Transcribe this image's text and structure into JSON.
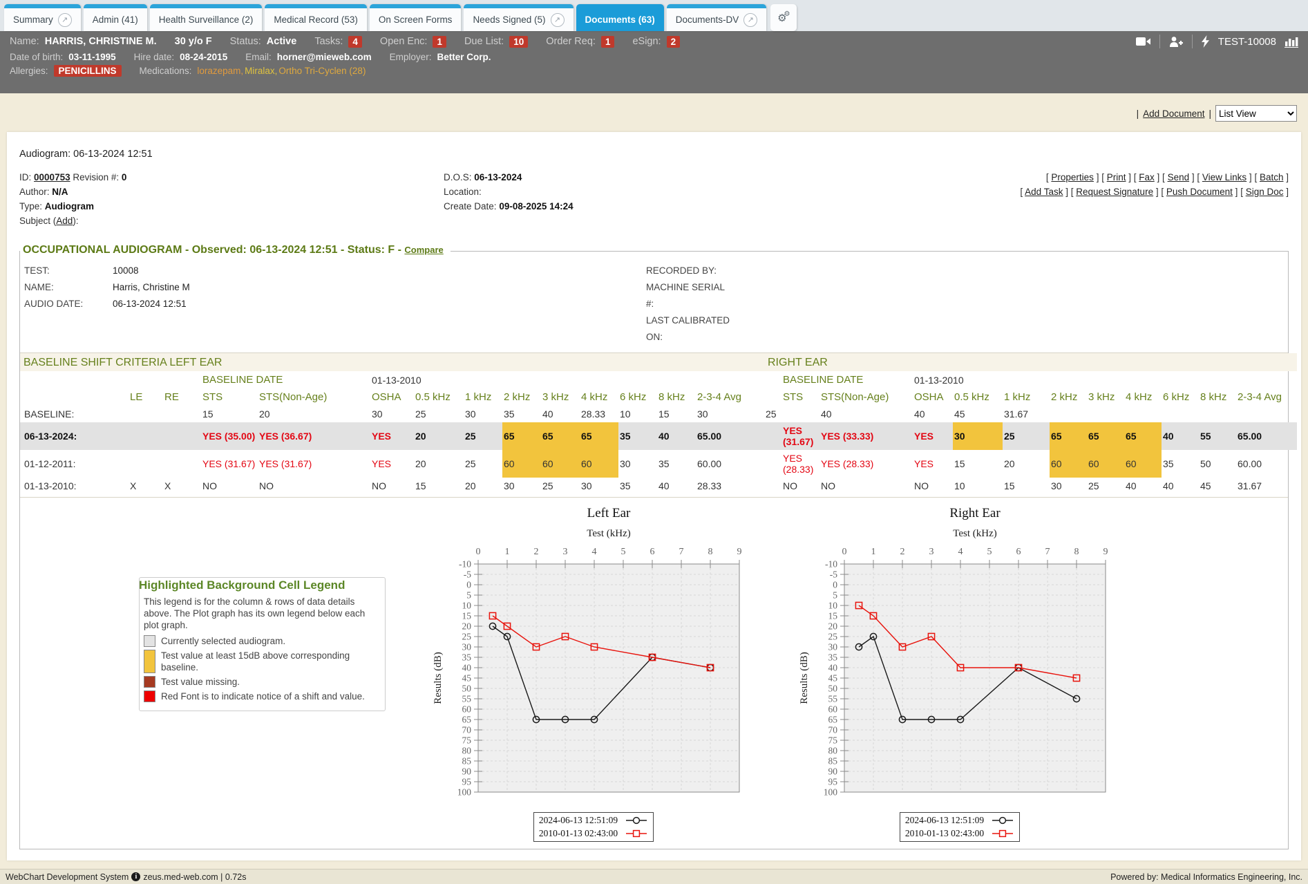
{
  "colors": {
    "tab_active": "#1b9cd8",
    "tab_strip": "#2ba4da",
    "patient_bar": "#6e6e6e",
    "badge_red": "#c0392b",
    "page_beige": "#f2ecda",
    "heading_green": "#66801c",
    "shift_red": "#e30613",
    "highlight_yellow": "#f2c43d",
    "selected_gray": "#e2e2e2",
    "series_black": "#1a1a1a",
    "series_red": "#e8130c",
    "missing_brown": "#a63a21",
    "legend_red": "#ee0000"
  },
  "tabs": [
    {
      "label": "Summary",
      "ext": true,
      "active": false
    },
    {
      "label": "Admin (41)",
      "ext": false,
      "active": false
    },
    {
      "label": "Health Surveillance (2)",
      "ext": false,
      "active": false
    },
    {
      "label": "Medical Record (53)",
      "ext": false,
      "active": false
    },
    {
      "label": "On Screen Forms",
      "ext": false,
      "active": false
    },
    {
      "label": "Needs Signed (5)",
      "ext": true,
      "active": false
    },
    {
      "label": "Documents (63)",
      "ext": false,
      "active": true
    },
    {
      "label": "Documents-DV",
      "ext": true,
      "active": false
    }
  ],
  "patient": {
    "name_label": "Name:",
    "name": "HARRIS, CHRISTINE M.",
    "age_sex": "30 y/o F",
    "status_label": "Status:",
    "status": "Active",
    "counters": [
      {
        "label": "Tasks:",
        "value": "4"
      },
      {
        "label": "Open Enc:",
        "value": "1"
      },
      {
        "label": "Due List:",
        "value": "10"
      },
      {
        "label": "Order Req:",
        "value": "1"
      },
      {
        "label": "eSign:",
        "value": "2"
      }
    ],
    "chart_id": "TEST-10008",
    "dob_label": "Date of birth:",
    "dob": "03-11-1995",
    "hire_label": "Hire date:",
    "hire": "08-24-2015",
    "email_label": "Email:",
    "email": "horner@mieweb.com",
    "employer_label": "Employer:",
    "employer": "Better Corp.",
    "allergies_label": "Allergies:",
    "allergy": "PENICILLINS",
    "medications_label": "Medications:",
    "medications": [
      {
        "name": "lorazepam",
        "color": "#e09a3e"
      },
      {
        "name": "Miralax",
        "color": "#dfc23f"
      },
      {
        "name": "Ortho Tri-Cyclen (28)",
        "color": "#e0a93e"
      }
    ],
    "med_separator": ","
  },
  "toolbar": {
    "pipe": "|",
    "add_document": "Add Document",
    "view_selected": "List View"
  },
  "document": {
    "title": "Audiogram: 06-13-2024 12:51",
    "id_label": "ID:",
    "id": "0000753",
    "revision_label": "Revision #:",
    "revision": "0",
    "author_label": "Author:",
    "author": "N/A",
    "type_label": "Type:",
    "type": "Audiogram",
    "subject_label": "Subject (",
    "subject_add": "Add",
    "subject_close": "):",
    "dos_label": "D.O.S:",
    "dos": "06-13-2024",
    "location_label": "Location:",
    "location": "",
    "create_label": "Create Date:",
    "create": "09-08-2025 14:24",
    "link_open": "[",
    "link_close": "]",
    "links_row1": [
      "Properties",
      "Print",
      "Fax",
      "Send",
      "View Links",
      "Batch"
    ],
    "links_row2": [
      "Add Task",
      "Request Signature",
      "Push Document",
      "Sign Doc"
    ]
  },
  "audiogram": {
    "title": "OCCUPATIONAL AUDIOGRAM - Observed: 06-13-2024 12:51 - Status: F -",
    "compare_link": "Compare",
    "info_left": [
      {
        "label": "TEST:",
        "value": "10008"
      },
      {
        "label": "NAME:",
        "value": "Harris, Christine M"
      },
      {
        "label": "AUDIO DATE:",
        "value": "06-13-2024 12:51"
      }
    ],
    "info_right": [
      {
        "label": "RECORDED BY:",
        "value": ""
      },
      {
        "label": "MACHINE SERIAL #:",
        "value": ""
      },
      {
        "label": "LAST CALIBRATED ON:",
        "value": ""
      }
    ],
    "section_left": "BASELINE SHIFT CRITERIA LEFT EAR",
    "section_right": "RIGHT EAR",
    "baseline_date_label": "BASELINE DATE",
    "baseline_date_left": "01-13-2010",
    "baseline_date_right": "01-13-2010",
    "headers": [
      "LE",
      "RE",
      "STS",
      "STS(Non-Age)",
      "OSHA",
      "0.5 kHz",
      "1 kHz",
      "2 kHz",
      "3 kHz",
      "4 kHz",
      "6 kHz",
      "8 kHz",
      "2-3-4 Avg"
    ],
    "rows": [
      {
        "label": "BASELINE:",
        "le": "",
        "re": "",
        "selected": false,
        "gap": "25",
        "left": [
          {
            "t": "15"
          },
          {
            "t": "20"
          },
          {
            "t": "30"
          },
          {
            "t": "25"
          },
          {
            "t": "30"
          },
          {
            "t": "35"
          },
          {
            "t": "40"
          },
          {
            "t": "28.33"
          },
          {
            "t": "10"
          },
          {
            "t": "15"
          },
          {
            "t": "30"
          }
        ],
        "right": [
          {
            "t": ""
          },
          {
            "t": "40"
          },
          {
            "t": "40"
          },
          {
            "t": "45"
          },
          {
            "t": "31.67"
          },
          {
            "t": ""
          },
          {
            "t": ""
          },
          {
            "t": ""
          },
          {
            "t": ""
          },
          {
            "t": ""
          },
          {
            "t": ""
          }
        ]
      },
      {
        "label": "06-13-2024:",
        "le": "",
        "re": "",
        "selected": true,
        "gap": "",
        "left": [
          {
            "t": "YES (35.00)",
            "red": true
          },
          {
            "t": "YES (36.67)",
            "red": true
          },
          {
            "t": "YES",
            "red": true
          },
          {
            "t": "20"
          },
          {
            "t": "25"
          },
          {
            "t": "65",
            "hl": true
          },
          {
            "t": "65",
            "hl": true
          },
          {
            "t": "65",
            "hl": true
          },
          {
            "t": "35"
          },
          {
            "t": "40"
          },
          {
            "t": "65.00"
          }
        ],
        "right": [
          {
            "t": "YES (31.67)",
            "red": true
          },
          {
            "t": "YES (33.33)",
            "red": true
          },
          {
            "t": "YES",
            "red": true
          },
          {
            "t": "30",
            "hl": true
          },
          {
            "t": "25"
          },
          {
            "t": "65",
            "hl": true
          },
          {
            "t": "65",
            "hl": true
          },
          {
            "t": "65",
            "hl": true
          },
          {
            "t": "40"
          },
          {
            "t": "55"
          },
          {
            "t": "65.00"
          }
        ]
      },
      {
        "label": "01-12-2011:",
        "le": "",
        "re": "",
        "selected": false,
        "gap": "",
        "left": [
          {
            "t": "YES (31.67)",
            "red": true
          },
          {
            "t": "YES (31.67)",
            "red": true
          },
          {
            "t": "YES",
            "red": true
          },
          {
            "t": "20"
          },
          {
            "t": "25"
          },
          {
            "t": "60",
            "hl": true
          },
          {
            "t": "60",
            "hl": true
          },
          {
            "t": "60",
            "hl": true
          },
          {
            "t": "30"
          },
          {
            "t": "35"
          },
          {
            "t": "60.00"
          }
        ],
        "right": [
          {
            "t": "YES (28.33)",
            "red": true
          },
          {
            "t": "YES (28.33)",
            "red": true
          },
          {
            "t": "YES",
            "red": true
          },
          {
            "t": "15"
          },
          {
            "t": "20"
          },
          {
            "t": "60",
            "hl": true
          },
          {
            "t": "60",
            "hl": true
          },
          {
            "t": "60",
            "hl": true
          },
          {
            "t": "35"
          },
          {
            "t": "50"
          },
          {
            "t": "60.00"
          }
        ]
      },
      {
        "label": "01-13-2010:",
        "le": "X",
        "re": "X",
        "selected": false,
        "gap": "",
        "left": [
          {
            "t": "NO"
          },
          {
            "t": "NO"
          },
          {
            "t": "NO"
          },
          {
            "t": "15"
          },
          {
            "t": "20"
          },
          {
            "t": "30"
          },
          {
            "t": "25"
          },
          {
            "t": "30"
          },
          {
            "t": "35"
          },
          {
            "t": "40"
          },
          {
            "t": "28.33"
          }
        ],
        "right": [
          {
            "t": "NO"
          },
          {
            "t": "NO"
          },
          {
            "t": "NO"
          },
          {
            "t": "10"
          },
          {
            "t": "15"
          },
          {
            "t": "30"
          },
          {
            "t": "25"
          },
          {
            "t": "40"
          },
          {
            "t": "40"
          },
          {
            "t": "45"
          },
          {
            "t": "31.67"
          }
        ]
      }
    ]
  },
  "cell_legend": {
    "title": "Highlighted Background Cell Legend",
    "description": "This legend is for the column & rows of data details above. The Plot graph has its own legend below each plot graph.",
    "items": [
      {
        "color": "#e3e3e3",
        "text": "Currently selected audiogram."
      },
      {
        "color": "#f2c43d",
        "text": "Test value at least 15dB above corresponding baseline."
      },
      {
        "color": "#a63a21",
        "text": "Test value missing."
      },
      {
        "color": "#ee0000",
        "text": "Red Font is to indicate notice of a shift and value."
      }
    ]
  },
  "chart_data": [
    {
      "type": "line",
      "title": "Left Ear",
      "xlabel": "Test (kHz)",
      "ylabel": "Results (dB)",
      "xlim": [
        0,
        9
      ],
      "ylim": [
        -10,
        100
      ],
      "x_ticks": [
        0,
        1,
        2,
        3,
        4,
        5,
        6,
        7,
        8,
        9
      ],
      "y_tick_step": 5,
      "grid": true,
      "legend_position": "bottom",
      "series": [
        {
          "name": "2024-06-13 12:51:09",
          "color": "#1a1a1a",
          "marker": "circle",
          "x": [
            0.5,
            1,
            2,
            3,
            4,
            6,
            8
          ],
          "y": [
            20,
            25,
            65,
            65,
            65,
            35,
            40
          ]
        },
        {
          "name": "2010-01-13 02:43:00",
          "color": "#e8130c",
          "marker": "square",
          "x": [
            0.5,
            1,
            2,
            3,
            4,
            6,
            8
          ],
          "y": [
            15,
            20,
            30,
            25,
            30,
            35,
            40
          ]
        }
      ]
    },
    {
      "type": "line",
      "title": "Right Ear",
      "xlabel": "Test (kHz)",
      "ylabel": "Results (dB)",
      "xlim": [
        0,
        9
      ],
      "ylim": [
        -10,
        100
      ],
      "x_ticks": [
        0,
        1,
        2,
        3,
        4,
        5,
        6,
        7,
        8,
        9
      ],
      "y_tick_step": 5,
      "grid": true,
      "legend_position": "bottom",
      "series": [
        {
          "name": "2024-06-13 12:51:09",
          "color": "#1a1a1a",
          "marker": "circle",
          "x": [
            0.5,
            1,
            2,
            3,
            4,
            6,
            8
          ],
          "y": [
            30,
            25,
            65,
            65,
            65,
            40,
            55
          ]
        },
        {
          "name": "2010-01-13 02:43:00",
          "color": "#e8130c",
          "marker": "square",
          "x": [
            0.5,
            1,
            2,
            3,
            4,
            6,
            8
          ],
          "y": [
            10,
            15,
            30,
            25,
            40,
            40,
            45
          ]
        }
      ]
    }
  ],
  "footer": {
    "left_text": "WebChart Development System",
    "host": "zeus.med-web.com | 0.72s",
    "right_text": "Powered by: Medical Informatics Engineering, Inc."
  }
}
